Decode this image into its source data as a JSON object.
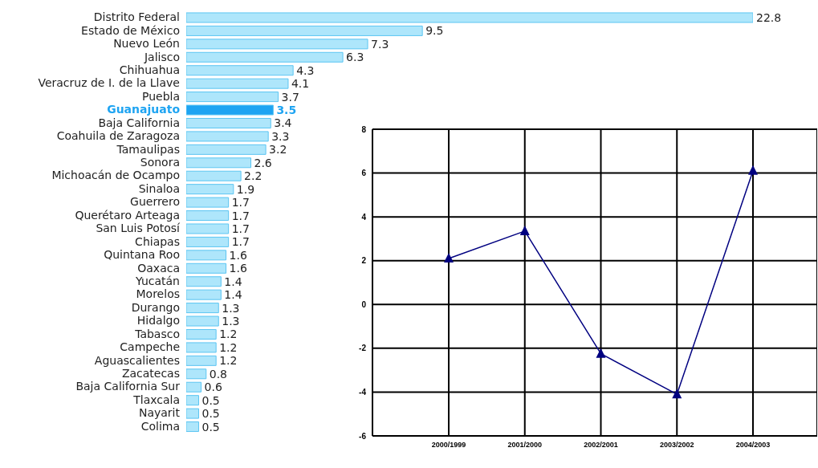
{
  "chart_data": [
    {
      "type": "bar",
      "orientation": "horizontal",
      "categories": [
        "Distrito Federal",
        "Estado de México",
        "Nuevo León",
        "Jalisco",
        "Chihuahua",
        "Veracruz de I. de la Llave",
        "Puebla",
        "Guanajuato",
        "Baja California",
        "Coahuila de Zaragoza",
        "Tamaulipas",
        "Sonora",
        "Michoacán  de Ocampo",
        "Sinaloa",
        "Guerrero",
        "Querétaro Arteaga",
        "San Luis Potosí",
        "Chiapas",
        "Quintana Roo",
        "Oaxaca",
        "Yucatán",
        "Morelos",
        "Durango",
        "Hidalgo",
        "Tabasco",
        "Campeche",
        "Aguascalientes",
        "Zacatecas",
        "Baja California Sur",
        "Tlaxcala",
        "Nayarit",
        "Colima"
      ],
      "values": [
        22.8,
        9.5,
        7.3,
        6.3,
        4.3,
        4.1,
        3.7,
        3.5,
        3.4,
        3.3,
        3.2,
        2.6,
        2.2,
        1.9,
        1.7,
        1.7,
        1.7,
        1.7,
        1.6,
        1.6,
        1.4,
        1.4,
        1.3,
        1.3,
        1.2,
        1.2,
        1.2,
        0.8,
        0.6,
        0.5,
        0.5,
        0.5
      ],
      "color": "#aee6fb",
      "colors": [
        "#aee6fb",
        "#aee6fb",
        "#aee6fb",
        "#aee6fb",
        "#aee6fb",
        "#aee6fb",
        "#aee6fb",
        "#1ea4f2",
        "#aee6fb",
        "#aee6fb",
        "#aee6fb",
        "#aee6fb",
        "#aee6fb",
        "#aee6fb",
        "#aee6fb",
        "#aee6fb",
        "#aee6fb",
        "#aee6fb",
        "#aee6fb",
        "#aee6fb",
        "#aee6fb",
        "#aee6fb",
        "#aee6fb",
        "#aee6fb",
        "#aee6fb",
        "#aee6fb",
        "#aee6fb",
        "#aee6fb",
        "#aee6fb",
        "#aee6fb",
        "#aee6fb",
        "#aee6fb"
      ],
      "data_labels": true
    },
    {
      "type": "line",
      "categories": [
        "2000/1999",
        "2001/2000",
        "2002/2001",
        "2003/2002",
        "2004/2003"
      ],
      "series": [
        {
          "color": "#000080",
          "values": [
            2.1,
            3.35,
            -2.25,
            -4.1,
            6.1
          ]
        }
      ],
      "ylim": [
        -6,
        8
      ],
      "yticks": [
        -6,
        -4,
        -2,
        0,
        2,
        4,
        6,
        8
      ],
      "grid": true,
      "marker": "triangle",
      "line_style": "solid"
    }
  ]
}
